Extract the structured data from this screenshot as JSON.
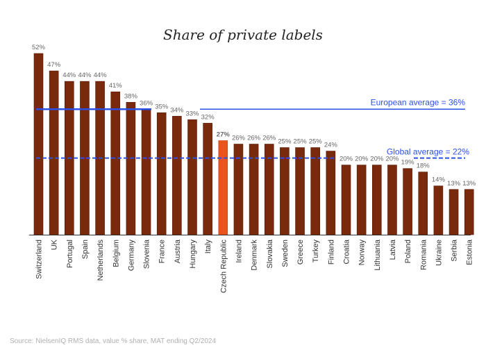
{
  "chart_data": {
    "type": "bar",
    "title": "Share of private labels",
    "categories": [
      "Switzerland",
      "UK",
      "Portugal",
      "Spain",
      "Netherlands",
      "Belgium",
      "Germany",
      "Slovenia",
      "France",
      "Austria",
      "Hungary",
      "Italy",
      "Czech Republic",
      "Ireland",
      "Denmark",
      "Slovakia",
      "Sweden",
      "Greece",
      "Turkey",
      "Finland",
      "Croatia",
      "Norway",
      "Lithuania",
      "Latvia",
      "Poland",
      "Romania",
      "Ukraine",
      "Serbia",
      "Estonia"
    ],
    "values": [
      52,
      47,
      44,
      44,
      44,
      41,
      38,
      36,
      35,
      34,
      33,
      32,
      27,
      26,
      26,
      26,
      25,
      25,
      25,
      24,
      20,
      20,
      20,
      20,
      19,
      18,
      14,
      13,
      13
    ],
    "value_labels": [
      "52%",
      "47%",
      "44%",
      "44%",
      "44%",
      "41%",
      "38%",
      "36%",
      "35%",
      "34%",
      "33%",
      "32%",
      "27%",
      "26%",
      "26%",
      "26%",
      "25%",
      "25%",
      "25%",
      "24%",
      "20%",
      "20%",
      "20%",
      "20%",
      "19%",
      "18%",
      "14%",
      "13%",
      "13%"
    ],
    "highlight": "Czech Republic",
    "unit": "%",
    "ylim": [
      0,
      52
    ],
    "grid": false,
    "reference_lines": [
      {
        "label": "European average = 36%",
        "value": 36,
        "style": "solid"
      },
      {
        "label": "Global average = 22%",
        "value": 22,
        "style": "dashed"
      }
    ],
    "colors": {
      "bar": "#7a2a0c",
      "highlight": "#e8541c",
      "reference": "#2b50e8"
    }
  },
  "source": "Source: NielsenIQ RMS data, value % share, MAT ending Q2/2024"
}
